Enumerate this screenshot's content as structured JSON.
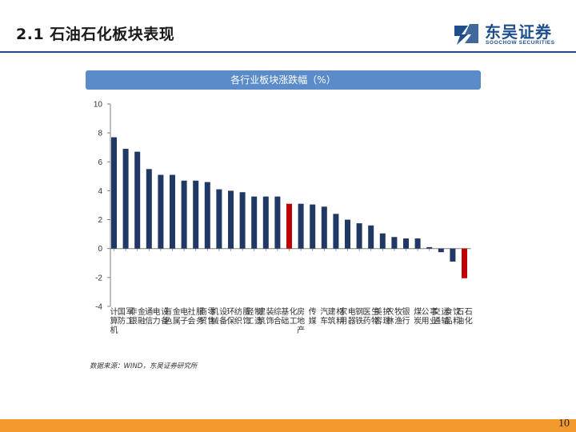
{
  "header": {
    "title": "2.1 石油石化板块表现",
    "logo_cn": "东吴证券",
    "logo_en": "SOOCHOW SECURITIES"
  },
  "chart_banner": "各行业板块涨跌幅（%）",
  "chart_data": {
    "type": "bar",
    "title": "各行业板块涨跌幅（%）",
    "xlabel": "",
    "ylabel": "",
    "ylim": [
      -4,
      10
    ],
    "yticks": [
      10,
      8,
      6,
      4,
      2,
      0,
      -2,
      -4
    ],
    "grid": false,
    "categories": [
      "计算机",
      "国防军工",
      "非银金融",
      "通信",
      "电力设备",
      "有色金属",
      "电子",
      "社会服务",
      "商贸零售",
      "机械设备",
      "环保",
      "纺织服饰",
      "轻工制造",
      "建筑装饰",
      "综合",
      "基础化工",
      "房地产",
      "传媒",
      "汽车",
      "建筑材料",
      "家用电器",
      "钢铁",
      "医药生物",
      "美容护理",
      "农林牧渔",
      "银行",
      "煤炭",
      "公用事业",
      "交通运输",
      "食品饮料",
      "石油石化"
    ],
    "values": [
      7.7,
      6.9,
      6.7,
      5.5,
      5.1,
      5.1,
      4.7,
      4.7,
      4.6,
      4.1,
      4.0,
      3.9,
      3.6,
      3.6,
      3.6,
      3.1,
      3.1,
      3.05,
      2.9,
      2.4,
      2.0,
      1.75,
      1.6,
      1.05,
      0.8,
      0.7,
      0.7,
      0.1,
      -0.25,
      -0.9,
      -2.05
    ],
    "highlight": [
      "基础化工",
      "石油石化"
    ],
    "colors": {
      "bar": "#1f3864",
      "highlight": "#c00000"
    }
  },
  "source": "数据来源：WIND，东吴证券研究所",
  "page_number": "10"
}
